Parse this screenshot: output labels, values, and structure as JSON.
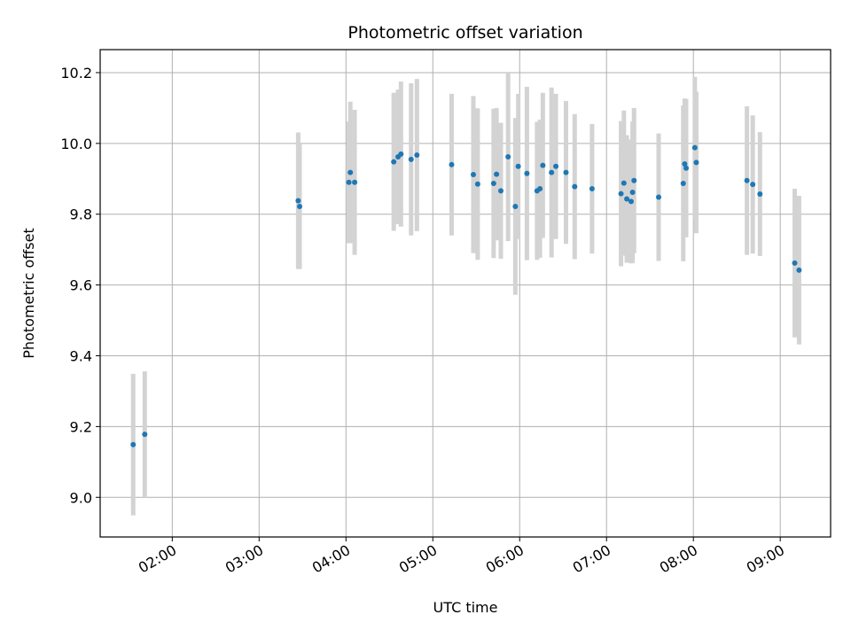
{
  "chart_data": {
    "type": "scatter",
    "title": "Photometric offset variation",
    "xlabel": "UTC time",
    "ylabel": "Photometric offset",
    "x_ticks": [
      "02:00",
      "03:00",
      "04:00",
      "05:00",
      "06:00",
      "07:00",
      "08:00",
      "09:00"
    ],
    "x_tick_hours": [
      2,
      3,
      4,
      5,
      6,
      7,
      8,
      9
    ],
    "xlim_hours": [
      1.17,
      9.58
    ],
    "y_ticks": [
      "9.0",
      "9.2",
      "9.4",
      "9.6",
      "9.8",
      "10.0",
      "10.2"
    ],
    "y_tick_values": [
      9.0,
      9.2,
      9.4,
      9.6,
      9.8,
      10.0,
      10.2
    ],
    "ylim": [
      8.888,
      10.265
    ],
    "grid": true,
    "colors": {
      "points": "#1f77b4",
      "errorbars": "#d3d3d3",
      "grid": "#b0b0b0"
    },
    "series": [
      {
        "x": [
          "01:33",
          "01:41",
          "03:27",
          "03:28",
          "04:02",
          "04:03",
          "04:06",
          "04:33",
          "04:36",
          "04:38",
          "04:45",
          "04:49",
          "05:13",
          "05:28",
          "05:31",
          "05:42",
          "05:44",
          "05:47",
          "05:52",
          "05:57",
          "05:59",
          "06:05",
          "06:12",
          "06:14",
          "06:16",
          "06:22",
          "06:25",
          "06:32",
          "06:38",
          "06:50",
          "07:10",
          "07:12",
          "07:14",
          "07:17",
          "07:18",
          "07:19",
          "07:36",
          "07:53",
          "07:54",
          "07:55",
          "08:01",
          "08:02",
          "08:37",
          "08:41",
          "08:46",
          "09:10",
          "09:13"
        ],
        "y": [
          9.149,
          9.178,
          9.838,
          9.822,
          9.89,
          9.918,
          9.89,
          9.948,
          9.962,
          9.97,
          9.955,
          9.967,
          9.94,
          9.912,
          9.885,
          9.887,
          9.913,
          9.866,
          9.962,
          9.822,
          9.935,
          9.915,
          9.866,
          9.872,
          9.938,
          9.918,
          9.935,
          9.918,
          9.878,
          9.872,
          9.858,
          9.888,
          9.843,
          9.836,
          9.862,
          9.895,
          9.848,
          9.887,
          9.942,
          9.93,
          9.988,
          9.946,
          9.895,
          9.884,
          9.857,
          9.662,
          9.642
        ],
        "yerr": [
          0.2,
          0.178,
          0.193,
          0.177,
          0.172,
          0.2,
          0.205,
          0.195,
          0.19,
          0.205,
          0.215,
          0.215,
          0.2,
          0.222,
          0.214,
          0.211,
          0.187,
          0.192,
          0.238,
          0.25,
          0.205,
          0.245,
          0.195,
          0.195,
          0.205,
          0.24,
          0.205,
          0.202,
          0.205,
          0.183,
          0.205,
          0.205,
          0.18,
          0.175,
          0.2,
          0.205,
          0.18,
          0.22,
          0.185,
          0.195,
          0.2,
          0.2,
          0.21,
          0.195,
          0.175,
          0.21,
          0.21
        ]
      }
    ]
  }
}
